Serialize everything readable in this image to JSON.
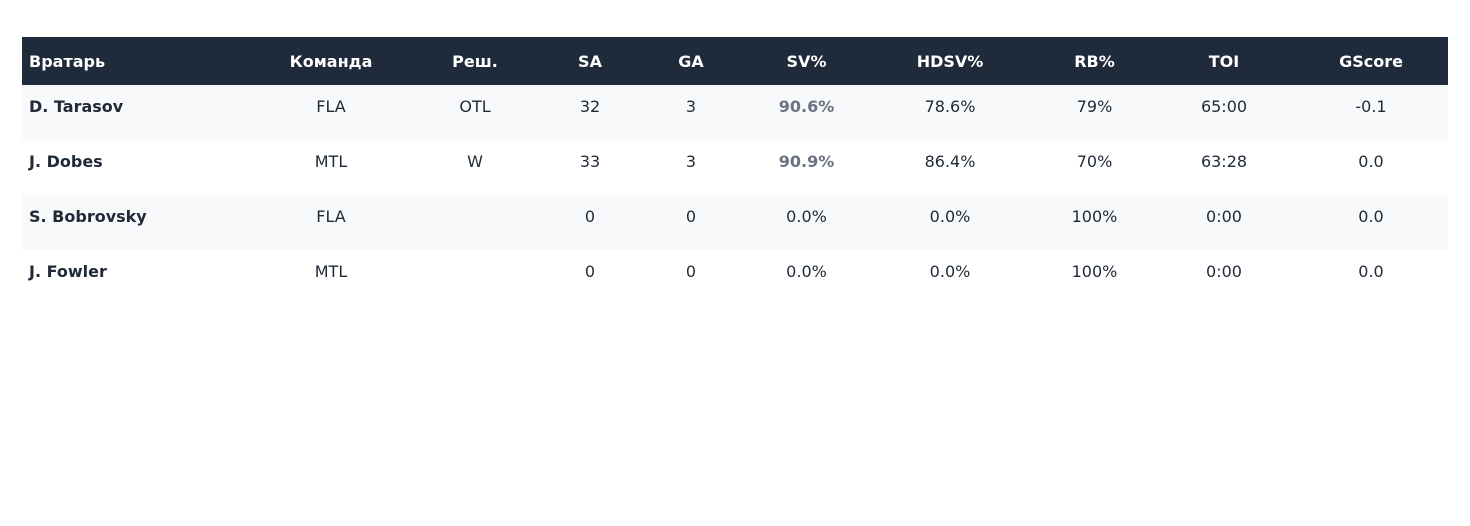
{
  "table": {
    "headers": [
      "Вратарь",
      "Команда",
      "Реш.",
      "SA",
      "GA",
      "SV%",
      "HDSV%",
      "RB%",
      "TOI",
      "GScore"
    ],
    "rows": [
      {
        "goalie": "D. Tarasov",
        "team": "FLA",
        "decision": "OTL",
        "sa": "32",
        "ga": "3",
        "sv_pct": "90.6%",
        "hdsv_pct": "78.6%",
        "rb_pct": "79%",
        "toi": "65:00",
        "gscore": "-0.1"
      },
      {
        "goalie": "J. Dobes",
        "team": "MTL",
        "decision": "W",
        "sa": "33",
        "ga": "3",
        "sv_pct": "90.9%",
        "hdsv_pct": "86.4%",
        "rb_pct": "70%",
        "toi": "63:28",
        "gscore": "0.0"
      },
      {
        "goalie": "S. Bobrovsky",
        "team": "FLA",
        "decision": "",
        "sa": "0",
        "ga": "0",
        "sv_pct": "0.0%",
        "hdsv_pct": "0.0%",
        "rb_pct": "100%",
        "toi": "0:00",
        "gscore": "0.0"
      },
      {
        "goalie": "J. Fowler",
        "team": "MTL",
        "decision": "",
        "sa": "0",
        "ga": "0",
        "sv_pct": "0.0%",
        "hdsv_pct": "0.0%",
        "rb_pct": "100%",
        "toi": "0:00",
        "gscore": "0.0"
      }
    ]
  },
  "colors": {
    "header_bg": "#1f2a3a",
    "header_text": "#ffffff",
    "text": "#1f2937",
    "muted_text": "#6b7280",
    "row_alt_bg": "#f8f9fb"
  }
}
